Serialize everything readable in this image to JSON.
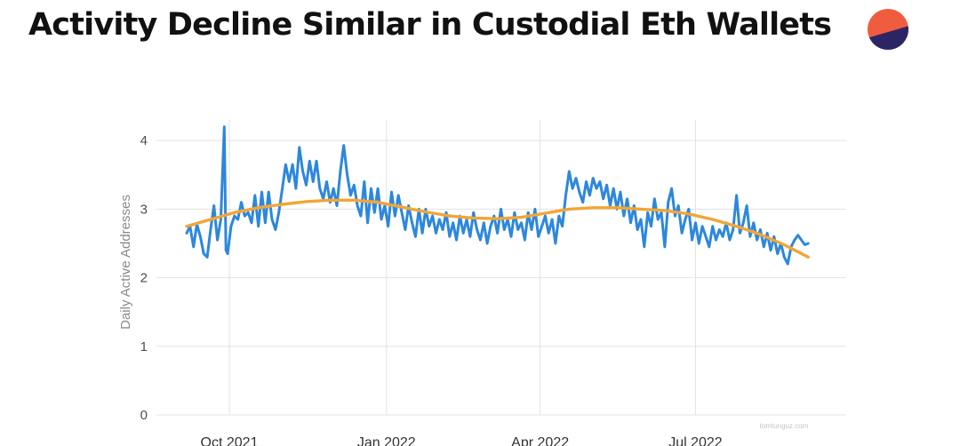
{
  "title": "Activity Decline Similar in Custodial Eth Wallets",
  "logo_colors": {
    "top": "#f05d3e",
    "bottom": "#2b2566"
  },
  "watermark": "tomtunguz.com",
  "chart_data": {
    "type": "line",
    "title": "Activity Decline Similar in Custodial Eth Wallets",
    "xlabel": "",
    "ylabel": "Daily Active Addresses",
    "ylim": [
      0,
      4.3
    ],
    "yticks": [
      0,
      1,
      2,
      3,
      4
    ],
    "xticks": [
      "Oct 2021",
      "Jan 2022",
      "Apr 2022",
      "Jul 2022"
    ],
    "xtick_dates": [
      "2021-10-01",
      "2022-01-01",
      "2022-04-01",
      "2022-07-01"
    ],
    "xlim": [
      "2021-09-06",
      "2022-09-08"
    ],
    "grid": true,
    "legend": "none",
    "series": [
      {
        "color": "#2d87dc",
        "points": [
          [
            "2021-09-06",
            2.65
          ],
          [
            "2021-09-08",
            2.75
          ],
          [
            "2021-09-10",
            2.45
          ],
          [
            "2021-09-12",
            2.78
          ],
          [
            "2021-09-14",
            2.6
          ],
          [
            "2021-09-16",
            2.35
          ],
          [
            "2021-09-18",
            2.3
          ],
          [
            "2021-09-20",
            2.7
          ],
          [
            "2021-09-22",
            3.05
          ],
          [
            "2021-09-24",
            2.55
          ],
          [
            "2021-09-26",
            2.85
          ],
          [
            "2021-09-28",
            4.2
          ],
          [
            "2021-09-29",
            2.4
          ],
          [
            "2021-09-30",
            2.35
          ],
          [
            "2021-10-02",
            2.75
          ],
          [
            "2021-10-04",
            2.9
          ],
          [
            "2021-10-06",
            2.85
          ],
          [
            "2021-10-08",
            3.1
          ],
          [
            "2021-10-10",
            2.9
          ],
          [
            "2021-10-12",
            2.95
          ],
          [
            "2021-10-14",
            2.8
          ],
          [
            "2021-10-16",
            3.2
          ],
          [
            "2021-10-18",
            2.75
          ],
          [
            "2021-10-20",
            3.25
          ],
          [
            "2021-10-22",
            2.8
          ],
          [
            "2021-10-24",
            3.25
          ],
          [
            "2021-10-26",
            2.85
          ],
          [
            "2021-10-28",
            2.7
          ],
          [
            "2021-10-30",
            2.95
          ],
          [
            "2021-11-01",
            3.3
          ],
          [
            "2021-11-03",
            3.65
          ],
          [
            "2021-11-05",
            3.4
          ],
          [
            "2021-11-07",
            3.65
          ],
          [
            "2021-11-09",
            3.3
          ],
          [
            "2021-11-11",
            3.9
          ],
          [
            "2021-11-13",
            3.55
          ],
          [
            "2021-11-15",
            3.35
          ],
          [
            "2021-11-17",
            3.7
          ],
          [
            "2021-11-19",
            3.4
          ],
          [
            "2021-11-21",
            3.7
          ],
          [
            "2021-11-23",
            3.3
          ],
          [
            "2021-11-25",
            3.15
          ],
          [
            "2021-11-27",
            3.4
          ],
          [
            "2021-11-29",
            3.1
          ],
          [
            "2021-12-01",
            3.3
          ],
          [
            "2021-12-03",
            3.05
          ],
          [
            "2021-12-05",
            3.55
          ],
          [
            "2021-12-07",
            3.93
          ],
          [
            "2021-12-09",
            3.5
          ],
          [
            "2021-12-11",
            3.2
          ],
          [
            "2021-12-13",
            3.35
          ],
          [
            "2021-12-15",
            3.05
          ],
          [
            "2021-12-17",
            2.9
          ],
          [
            "2021-12-19",
            3.4
          ],
          [
            "2021-12-21",
            2.8
          ],
          [
            "2021-12-23",
            3.3
          ],
          [
            "2021-12-25",
            2.95
          ],
          [
            "2021-12-27",
            3.3
          ],
          [
            "2021-12-29",
            2.85
          ],
          [
            "2021-12-31",
            3.05
          ],
          [
            "2022-01-02",
            2.75
          ],
          [
            "2022-01-04",
            3.25
          ],
          [
            "2022-01-06",
            2.9
          ],
          [
            "2022-01-08",
            3.2
          ],
          [
            "2022-01-10",
            2.95
          ],
          [
            "2022-01-12",
            2.7
          ],
          [
            "2022-01-14",
            3.05
          ],
          [
            "2022-01-16",
            2.8
          ],
          [
            "2022-01-18",
            2.6
          ],
          [
            "2022-01-20",
            3.0
          ],
          [
            "2022-01-22",
            2.65
          ],
          [
            "2022-01-24",
            3.0
          ],
          [
            "2022-01-26",
            2.75
          ],
          [
            "2022-01-28",
            2.9
          ],
          [
            "2022-01-30",
            2.65
          ],
          [
            "2022-02-01",
            2.85
          ],
          [
            "2022-02-03",
            2.7
          ],
          [
            "2022-02-05",
            2.95
          ],
          [
            "2022-02-07",
            2.6
          ],
          [
            "2022-02-09",
            2.8
          ],
          [
            "2022-02-11",
            2.55
          ],
          [
            "2022-02-13",
            2.9
          ],
          [
            "2022-02-15",
            2.65
          ],
          [
            "2022-02-17",
            2.85
          ],
          [
            "2022-02-19",
            2.6
          ],
          [
            "2022-02-21",
            2.95
          ],
          [
            "2022-02-23",
            2.7
          ],
          [
            "2022-02-25",
            2.55
          ],
          [
            "2022-02-27",
            2.8
          ],
          [
            "2022-03-01",
            2.5
          ],
          [
            "2022-03-03",
            2.75
          ],
          [
            "2022-03-05",
            2.9
          ],
          [
            "2022-03-07",
            2.65
          ],
          [
            "2022-03-09",
            3.0
          ],
          [
            "2022-03-11",
            2.7
          ],
          [
            "2022-03-13",
            2.85
          ],
          [
            "2022-03-15",
            2.6
          ],
          [
            "2022-03-17",
            2.95
          ],
          [
            "2022-03-19",
            2.7
          ],
          [
            "2022-03-21",
            2.8
          ],
          [
            "2022-03-23",
            2.55
          ],
          [
            "2022-03-25",
            2.95
          ],
          [
            "2022-03-27",
            2.7
          ],
          [
            "2022-03-29",
            3.0
          ],
          [
            "2022-03-31",
            2.6
          ],
          [
            "2022-04-02",
            2.75
          ],
          [
            "2022-04-04",
            2.9
          ],
          [
            "2022-04-06",
            2.65
          ],
          [
            "2022-04-08",
            2.85
          ],
          [
            "2022-04-10",
            2.5
          ],
          [
            "2022-04-12",
            2.9
          ],
          [
            "2022-04-14",
            2.75
          ],
          [
            "2022-04-16",
            3.2
          ],
          [
            "2022-04-18",
            3.55
          ],
          [
            "2022-04-20",
            3.3
          ],
          [
            "2022-04-22",
            3.45
          ],
          [
            "2022-04-24",
            3.25
          ],
          [
            "2022-04-26",
            3.1
          ],
          [
            "2022-04-28",
            3.4
          ],
          [
            "2022-04-30",
            3.2
          ],
          [
            "2022-05-02",
            3.45
          ],
          [
            "2022-05-04",
            3.3
          ],
          [
            "2022-05-06",
            3.4
          ],
          [
            "2022-05-08",
            3.15
          ],
          [
            "2022-05-10",
            3.35
          ],
          [
            "2022-05-12",
            3.05
          ],
          [
            "2022-05-14",
            3.3
          ],
          [
            "2022-05-16",
            3.0
          ],
          [
            "2022-05-18",
            3.25
          ],
          [
            "2022-05-20",
            2.9
          ],
          [
            "2022-05-22",
            3.15
          ],
          [
            "2022-05-24",
            2.8
          ],
          [
            "2022-05-26",
            3.05
          ],
          [
            "2022-05-28",
            2.7
          ],
          [
            "2022-05-30",
            2.85
          ],
          [
            "2022-06-01",
            2.45
          ],
          [
            "2022-06-03",
            2.95
          ],
          [
            "2022-06-05",
            2.75
          ],
          [
            "2022-06-07",
            3.15
          ],
          [
            "2022-06-09",
            2.85
          ],
          [
            "2022-06-11",
            2.95
          ],
          [
            "2022-06-13",
            2.45
          ],
          [
            "2022-06-15",
            3.1
          ],
          [
            "2022-06-17",
            3.3
          ],
          [
            "2022-06-19",
            2.9
          ],
          [
            "2022-06-21",
            3.05
          ],
          [
            "2022-06-23",
            2.65
          ],
          [
            "2022-06-25",
            2.85
          ],
          [
            "2022-06-27",
            3.0
          ],
          [
            "2022-06-29",
            2.55
          ],
          [
            "2022-07-01",
            2.8
          ],
          [
            "2022-07-03",
            2.5
          ],
          [
            "2022-07-05",
            2.75
          ],
          [
            "2022-07-07",
            2.6
          ],
          [
            "2022-07-09",
            2.45
          ],
          [
            "2022-07-11",
            2.75
          ],
          [
            "2022-07-13",
            2.55
          ],
          [
            "2022-07-15",
            2.7
          ],
          [
            "2022-07-17",
            2.6
          ],
          [
            "2022-07-19",
            2.8
          ],
          [
            "2022-07-21",
            2.55
          ],
          [
            "2022-07-23",
            2.7
          ],
          [
            "2022-07-25",
            3.2
          ],
          [
            "2022-07-27",
            2.65
          ],
          [
            "2022-07-29",
            2.8
          ],
          [
            "2022-07-31",
            3.05
          ],
          [
            "2022-08-02",
            2.6
          ],
          [
            "2022-08-04",
            2.8
          ],
          [
            "2022-08-06",
            2.55
          ],
          [
            "2022-08-08",
            2.7
          ],
          [
            "2022-08-10",
            2.45
          ],
          [
            "2022-08-12",
            2.65
          ],
          [
            "2022-08-14",
            2.4
          ],
          [
            "2022-08-16",
            2.6
          ],
          [
            "2022-08-18",
            2.35
          ],
          [
            "2022-08-20",
            2.5
          ],
          [
            "2022-08-22",
            2.3
          ],
          [
            "2022-08-24",
            2.2
          ],
          [
            "2022-08-26",
            2.45
          ],
          [
            "2022-08-28",
            2.55
          ],
          [
            "2022-08-30",
            2.62
          ],
          [
            "2022-09-01",
            2.55
          ],
          [
            "2022-09-03",
            2.48
          ],
          [
            "2022-09-05",
            2.5
          ]
        ]
      },
      {
        "color": "#f2a536",
        "points": [
          [
            "2021-09-06",
            2.75
          ],
          [
            "2021-09-20",
            2.85
          ],
          [
            "2021-10-04",
            2.95
          ],
          [
            "2021-10-18",
            3.02
          ],
          [
            "2021-11-01",
            3.07
          ],
          [
            "2021-11-15",
            3.11
          ],
          [
            "2021-11-29",
            3.13
          ],
          [
            "2021-12-13",
            3.13
          ],
          [
            "2021-12-27",
            3.1
          ],
          [
            "2022-01-10",
            3.03
          ],
          [
            "2022-01-24",
            2.96
          ],
          [
            "2022-02-07",
            2.9
          ],
          [
            "2022-02-21",
            2.87
          ],
          [
            "2022-03-07",
            2.86
          ],
          [
            "2022-03-21",
            2.88
          ],
          [
            "2022-04-04",
            2.94
          ],
          [
            "2022-04-18",
            3.0
          ],
          [
            "2022-05-02",
            3.02
          ],
          [
            "2022-05-16",
            3.02
          ],
          [
            "2022-05-30",
            3.0
          ],
          [
            "2022-06-13",
            2.98
          ],
          [
            "2022-06-27",
            2.93
          ],
          [
            "2022-07-11",
            2.85
          ],
          [
            "2022-07-25",
            2.75
          ],
          [
            "2022-08-08",
            2.63
          ],
          [
            "2022-08-22",
            2.48
          ],
          [
            "2022-09-05",
            2.3
          ]
        ]
      }
    ]
  }
}
